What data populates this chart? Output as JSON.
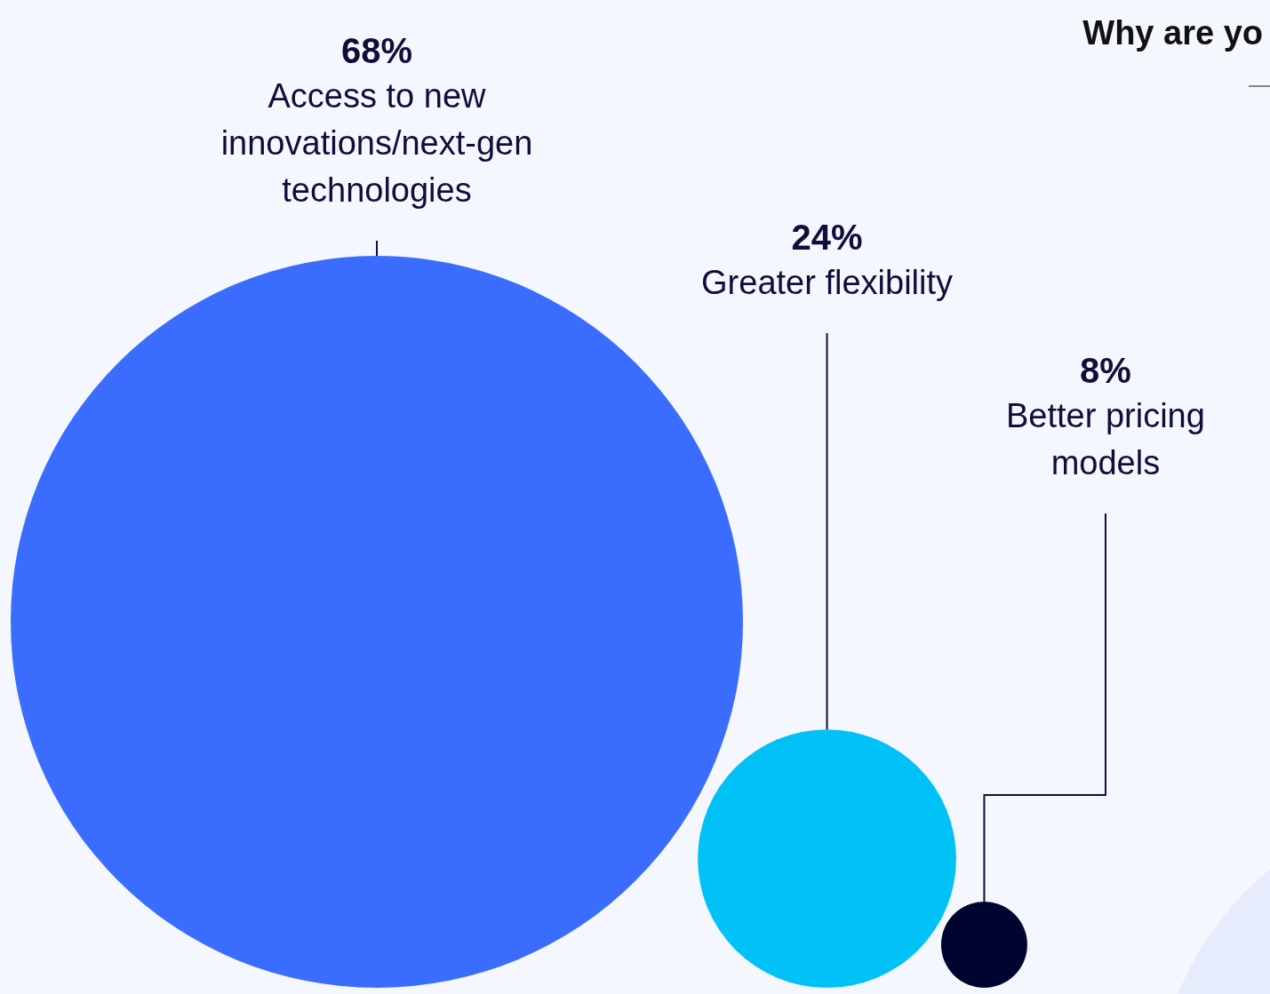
{
  "chart_data": {
    "type": "other",
    "title": "Why are yo",
    "categories": [
      "Access to new innovations/next-gen technologies",
      "Greater flexibility",
      "Better pricing models"
    ],
    "values": [
      68,
      24,
      8
    ],
    "value_labels": [
      "68%",
      "24%",
      "8%"
    ],
    "colors": [
      "#3a6dfd",
      "#00c2f7",
      "#000530"
    ]
  }
}
